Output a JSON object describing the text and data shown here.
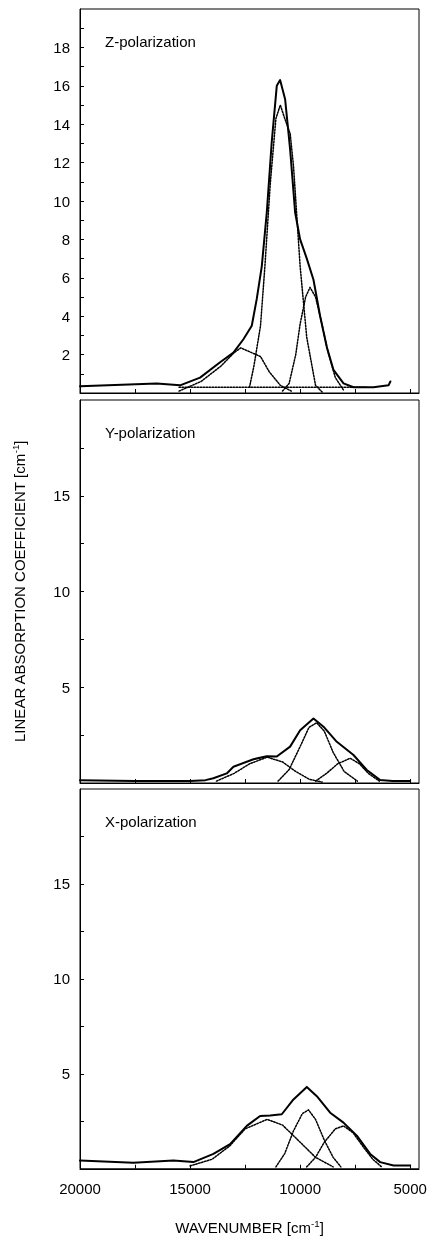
{
  "chart_data": [
    {
      "type": "line",
      "title": "Z-polarization",
      "xlim": [
        20000,
        4600
      ],
      "ylim": [
        0,
        20
      ],
      "tick_labels": "y",
      "marker": "none",
      "xticks": [
        {
          "value": 20000,
          "label": null
        },
        {
          "value": 17500,
          "label": null
        },
        {
          "value": 15000,
          "label": null
        },
        {
          "value": 12500,
          "label": null
        },
        {
          "value": 10000,
          "label": null
        },
        {
          "value": 7500,
          "label": null
        },
        {
          "value": 5000,
          "label": null
        }
      ],
      "yticks": [
        {
          "value": 1,
          "label": null
        },
        2,
        {
          "value": 3,
          "label": null
        },
        4,
        {
          "value": 5,
          "label": null
        },
        6,
        {
          "value": 7,
          "label": null
        },
        8,
        {
          "value": 9,
          "label": null
        },
        10,
        {
          "value": 11,
          "label": null
        },
        12,
        {
          "value": 13,
          "label": null
        },
        14,
        {
          "value": 15,
          "label": null
        },
        16,
        {
          "value": 17,
          "label": null
        },
        18,
        {
          "value": 19,
          "label": null
        }
      ],
      "series": [
        {
          "color": "#000000",
          "line_style": "solid",
          "x": [
            20000,
            16515,
            15455,
            14545,
            13636,
            13030,
            12576,
            12197,
            11970,
            11742,
            11515,
            11288,
            11061,
            10909,
            10682,
            10455,
            10227,
            10000,
            9697,
            9394,
            9091,
            8788,
            8485,
            8030,
            7576,
            6667,
            5985,
            5900
          ],
          "values": [
            0.35,
            0.5,
            0.4,
            0.8,
            1.6,
            2.1,
            2.8,
            3.5,
            4.9,
            6.6,
            9.4,
            13.1,
            16.0,
            16.3,
            15.3,
            12.7,
            9.4,
            8.0,
            7.0,
            5.9,
            4.0,
            2.4,
            1.2,
            0.5,
            0.3,
            0.3,
            0.4,
            0.6
          ]
        },
        {
          "color": "#000000",
          "line_style": "dotted",
          "x": [
            15500,
            14500,
            13600,
            13000,
            12700,
            12200,
            11800,
            11400,
            10900,
            10400
          ],
          "values": [
            0.1,
            0.6,
            1.4,
            2.1,
            2.35,
            2.1,
            1.9,
            1.1,
            0.4,
            0.1
          ]
        },
        {
          "color": "#000000",
          "line_style": "dotted",
          "x": [
            12300,
            12100,
            11800,
            11600,
            11350,
            11100,
            10900,
            10700,
            10450,
            10300,
            10000,
            9700,
            9300,
            9000
          ],
          "values": [
            0.3,
            1.4,
            3.5,
            6.6,
            11,
            14.3,
            15.0,
            14.3,
            13.5,
            11.8,
            6.6,
            2.9,
            0.4,
            0.05
          ]
        },
        {
          "color": "#000000",
          "line_style": "dotted",
          "x": [
            10800,
            10500,
            10200,
            10000,
            9750,
            9550,
            9300,
            9050,
            8750,
            8400,
            8000
          ],
          "values": [
            0.1,
            0.5,
            2.0,
            3.6,
            5.0,
            5.5,
            5.0,
            3.8,
            2.2,
            0.8,
            0.1
          ]
        },
        {
          "color": "#000000",
          "line_style": "dotted",
          "x": [
            15500,
            7000
          ],
          "values": [
            0.3,
            0.3
          ]
        }
      ]
    },
    {
      "type": "line",
      "title": "Y-polarization",
      "ylabel": "LINEAR ABSORPTION COEFFICIENT [cm$^{-1}$]",
      "xlim": [
        20000,
        4600
      ],
      "ylim": [
        0,
        20
      ],
      "tick_labels": "y",
      "marker": "none",
      "xticks": [
        {
          "value": 20000,
          "label": null
        },
        {
          "value": 17500,
          "label": null
        },
        {
          "value": 15000,
          "label": null
        },
        {
          "value": 12500,
          "label": null
        },
        {
          "value": 10000,
          "label": null
        },
        {
          "value": 7500,
          "label": null
        },
        {
          "value": 5000,
          "label": null
        }
      ],
      "yticks": [
        {
          "value": 2.5,
          "label": null
        },
        5,
        {
          "value": 7.5,
          "label": null
        },
        10,
        {
          "value": 12.5,
          "label": null
        },
        15,
        {
          "value": 17.5,
          "label": null
        }
      ],
      "series": [
        {
          "color": "#000000",
          "line_style": "solid",
          "x": [
            20000,
            17500,
            15000,
            14300,
            13940,
            13333,
            13030,
            12120,
            11515,
            11061,
            10455,
            10000,
            9394,
            8939,
            8333,
            7576,
            6970,
            6364,
            5800,
            5000
          ],
          "values": [
            0.15,
            0.1,
            0.1,
            0.15,
            0.25,
            0.5,
            0.85,
            1.24,
            1.4,
            1.38,
            1.9,
            2.76,
            3.37,
            2.94,
            2.15,
            1.46,
            0.68,
            0.16,
            0.1,
            0.1
          ]
        },
        {
          "color": "#000000",
          "line_style": "dotted",
          "x": [
            13800,
            13000,
            12300,
            11500,
            10800,
            10200,
            9600,
            9000
          ],
          "values": [
            0.1,
            0.5,
            1.0,
            1.35,
            1.1,
            0.6,
            0.2,
            0.05
          ]
        },
        {
          "color": "#000000",
          "line_style": "dotted",
          "x": [
            11000,
            10500,
            10000,
            9600,
            9250,
            8900,
            8500,
            8000,
            7400
          ],
          "values": [
            0.1,
            0.7,
            1.9,
            2.9,
            3.15,
            2.7,
            1.6,
            0.6,
            0.1
          ]
        },
        {
          "color": "#000000",
          "line_style": "dotted",
          "x": [
            9300,
            8800,
            8300,
            7730,
            7300,
            6900,
            6400
          ],
          "values": [
            0.1,
            0.5,
            1.0,
            1.29,
            1.0,
            0.5,
            0.1
          ]
        }
      ]
    },
    {
      "type": "line",
      "title": "X-polarization",
      "xlabel": "WAVENUMBER [cm$^{-1}$]",
      "xlim": [
        20000,
        4600
      ],
      "ylim": [
        0,
        20
      ],
      "marker": "none",
      "xticks": [
        20000,
        {
          "value": 17500,
          "label": null
        },
        15000,
        {
          "value": 12500,
          "label": null
        },
        10000,
        {
          "value": 7500,
          "label": null
        },
        5000
      ],
      "yticks": [
        {
          "value": 2.5,
          "label": null
        },
        5,
        {
          "value": 7.5,
          "label": null
        },
        10,
        {
          "value": 12.5,
          "label": null
        },
        15,
        {
          "value": 17.5,
          "label": null
        }
      ],
      "series": [
        {
          "color": "#000000",
          "line_style": "solid",
          "x": [
            20000,
            17576,
            15758,
            14848,
            13939,
            13182,
            12424,
            11818,
            11364,
            10833,
            10303,
            9697,
            9242,
            8636,
            8030,
            7424,
            6818,
            6364,
            5758,
            5000
          ],
          "values": [
            0.43,
            0.31,
            0.43,
            0.35,
            0.78,
            1.3,
            2.26,
            2.78,
            2.81,
            2.87,
            3.65,
            4.31,
            3.82,
            2.95,
            2.43,
            1.74,
            0.78,
            0.35,
            0.17,
            0.17
          ]
        },
        {
          "color": "#000000",
          "line_style": "dotted",
          "x": [
            15000,
            14000,
            13200,
            12500,
            11500,
            10800,
            10000,
            9300,
            8500
          ],
          "values": [
            0.15,
            0.5,
            1.2,
            2.1,
            2.6,
            2.3,
            1.4,
            0.6,
            0.1
          ]
        },
        {
          "color": "#000000",
          "line_style": "dotted",
          "x": [
            11100,
            10700,
            10300,
            9900,
            9620,
            9300,
            8900,
            8500,
            8150
          ],
          "values": [
            0.1,
            0.8,
            2.0,
            2.9,
            3.1,
            2.6,
            1.5,
            0.6,
            0.1
          ]
        },
        {
          "color": "#000000",
          "line_style": "dotted",
          "x": [
            9700,
            9300,
            8900,
            8400,
            8030,
            7600,
            7100,
            6700,
            6300
          ],
          "values": [
            0.1,
            0.6,
            1.4,
            2.1,
            2.26,
            1.9,
            1.1,
            0.5,
            0.1
          ]
        }
      ]
    }
  ]
}
